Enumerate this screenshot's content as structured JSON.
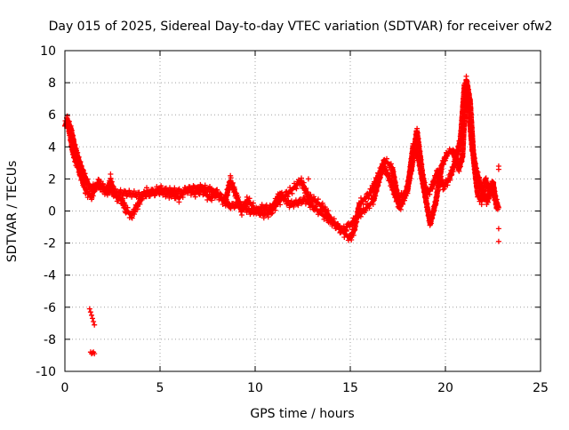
{
  "chart_data": {
    "type": "scatter",
    "title": "Day 015 of 2025, Sidereal Day-to-day VTEC variation (SDTVAR) for receiver ofw2",
    "xlabel": "GPS time / hours",
    "ylabel": "SDTVAR / TECUs",
    "xlim": [
      0,
      25
    ],
    "ylim": [
      -10,
      10
    ],
    "x_ticks": [
      "0",
      "5",
      "10",
      "15",
      "20",
      "25"
    ],
    "y_ticks": [
      "-10",
      "-8",
      "-6",
      "-4",
      "-2",
      "0",
      "2",
      "4",
      "6",
      "8",
      "10"
    ],
    "grid": true,
    "marker": "+",
    "series": [
      {
        "name": "SDTVAR",
        "color": "#ff0000",
        "trace_points": [
          [
            0.0,
            5.3
          ],
          [
            0.1,
            5.6
          ],
          [
            0.2,
            5.2
          ],
          [
            0.3,
            4.6
          ],
          [
            0.4,
            3.8
          ],
          [
            0.5,
            3.4
          ],
          [
            0.6,
            3.0
          ],
          [
            0.7,
            2.8
          ],
          [
            0.8,
            2.3
          ],
          [
            0.9,
            2.0
          ],
          [
            1.0,
            1.6
          ],
          [
            1.1,
            1.3
          ],
          [
            1.2,
            1.1
          ],
          [
            1.4,
            0.9
          ],
          [
            1.6,
            1.6
          ],
          [
            1.8,
            1.8
          ],
          [
            2.0,
            1.4
          ],
          [
            2.2,
            1.1
          ],
          [
            2.4,
            1.9
          ],
          [
            2.6,
            1.0
          ],
          [
            2.8,
            0.8
          ],
          [
            3.0,
            0.7
          ],
          [
            3.2,
            0.1
          ],
          [
            3.5,
            -0.3
          ],
          [
            3.8,
            0.3
          ],
          [
            4.0,
            0.8
          ],
          [
            4.3,
            1.2
          ],
          [
            4.6,
            1.1
          ],
          [
            5.0,
            1.4
          ],
          [
            5.3,
            1.0
          ],
          [
            5.6,
            1.1
          ],
          [
            6.0,
            0.8
          ],
          [
            6.4,
            1.4
          ],
          [
            6.8,
            1.1
          ],
          [
            7.2,
            1.3
          ],
          [
            7.6,
            0.8
          ],
          [
            8.0,
            1.1
          ],
          [
            8.4,
            0.5
          ],
          [
            8.7,
            1.9
          ],
          [
            9.0,
            1.0
          ],
          [
            9.3,
            0.0
          ],
          [
            9.6,
            0.7
          ],
          [
            10.0,
            0.1
          ],
          [
            10.4,
            -0.2
          ],
          [
            10.8,
            -0.1
          ],
          [
            11.2,
            0.5
          ],
          [
            11.6,
            1.0
          ],
          [
            12.0,
            1.4
          ],
          [
            12.4,
            1.9
          ],
          [
            12.8,
            0.9
          ],
          [
            13.2,
            0.6
          ],
          [
            13.6,
            0.2
          ],
          [
            14.0,
            -0.5
          ],
          [
            14.4,
            -1.1
          ],
          [
            14.8,
            -1.5
          ],
          [
            15.0,
            -1.7
          ],
          [
            15.2,
            -1.2
          ],
          [
            15.5,
            0.5
          ],
          [
            15.8,
            0.8
          ],
          [
            16.1,
            1.2
          ],
          [
            16.4,
            2.0
          ],
          [
            16.7,
            2.8
          ],
          [
            17.0,
            2.2
          ],
          [
            17.3,
            1.2
          ],
          [
            17.6,
            0.2
          ],
          [
            17.9,
            1.0
          ],
          [
            18.2,
            2.5
          ],
          [
            18.5,
            5.0
          ],
          [
            18.8,
            2.2
          ],
          [
            19.0,
            1.0
          ],
          [
            19.3,
            1.5
          ],
          [
            19.6,
            2.5
          ],
          [
            19.9,
            1.5
          ],
          [
            20.2,
            2.0
          ],
          [
            20.5,
            3.0
          ],
          [
            20.8,
            4.5
          ],
          [
            21.0,
            7.8
          ],
          [
            21.2,
            6.6
          ],
          [
            21.4,
            4.0
          ],
          [
            21.6,
            2.6
          ],
          [
            21.8,
            1.8
          ],
          [
            22.0,
            1.0
          ],
          [
            22.2,
            0.6
          ],
          [
            22.4,
            1.5
          ],
          [
            22.6,
            0.8
          ],
          [
            22.8,
            0.2
          ]
        ],
        "secondary_points": [
          [
            0.1,
            5.8
          ],
          [
            0.3,
            5.2
          ],
          [
            0.5,
            4.1
          ],
          [
            0.7,
            3.3
          ],
          [
            0.9,
            2.6
          ],
          [
            1.1,
            2.0
          ],
          [
            1.3,
            1.5
          ],
          [
            2.0,
            1.5
          ],
          [
            2.4,
            1.2
          ],
          [
            4.1,
            1.0
          ],
          [
            4.8,
            1.2
          ],
          [
            5.2,
            1.3
          ],
          [
            6.2,
            1.2
          ],
          [
            7.0,
            1.5
          ],
          [
            7.8,
            1.3
          ],
          [
            8.2,
            0.9
          ],
          [
            8.6,
            0.3
          ],
          [
            9.2,
            0.4
          ],
          [
            9.8,
            -0.1
          ],
          [
            10.3,
            0.2
          ],
          [
            10.9,
            0.2
          ],
          [
            11.3,
            1.1
          ],
          [
            11.8,
            0.4
          ],
          [
            12.2,
            0.5
          ],
          [
            12.6,
            0.7
          ],
          [
            13.0,
            0.3
          ],
          [
            13.5,
            -0.2
          ],
          [
            14.1,
            -0.8
          ],
          [
            14.6,
            -1.2
          ],
          [
            15.1,
            -0.7
          ],
          [
            16.2,
            0.6
          ],
          [
            16.8,
            3.2
          ],
          [
            17.2,
            2.7
          ],
          [
            17.5,
            0.8
          ],
          [
            18.0,
            1.2
          ],
          [
            18.3,
            4.0
          ],
          [
            18.6,
            3.2
          ],
          [
            18.9,
            1.2
          ],
          [
            19.2,
            -0.8
          ],
          [
            19.5,
            0.6
          ],
          [
            19.8,
            2.8
          ],
          [
            20.1,
            3.6
          ],
          [
            20.4,
            3.8
          ],
          [
            20.7,
            2.6
          ],
          [
            20.9,
            3.4
          ],
          [
            21.1,
            8.2
          ],
          [
            21.3,
            6.8
          ],
          [
            21.5,
            3.0
          ],
          [
            21.7,
            1.0
          ],
          [
            21.9,
            0.6
          ],
          [
            22.1,
            2.0
          ],
          [
            22.3,
            1.2
          ],
          [
            22.5,
            1.8
          ],
          [
            22.7,
            0.2
          ]
        ],
        "outlier_points": [
          [
            1.3,
            -6.1
          ],
          [
            1.35,
            -6.3
          ],
          [
            1.4,
            -6.5
          ],
          [
            1.45,
            -6.7
          ],
          [
            1.5,
            -6.9
          ],
          [
            1.55,
            -7.1
          ],
          [
            1.35,
            -8.8
          ],
          [
            1.4,
            -8.9
          ],
          [
            1.45,
            -8.85
          ],
          [
            1.5,
            -8.8
          ],
          [
            1.55,
            -8.9
          ],
          [
            22.8,
            2.6
          ],
          [
            22.8,
            2.8
          ],
          [
            22.8,
            -1.1
          ],
          [
            22.8,
            -1.9
          ],
          [
            12.8,
            2.0
          ],
          [
            8.7,
            2.2
          ],
          [
            2.4,
            2.3
          ]
        ]
      }
    ]
  }
}
